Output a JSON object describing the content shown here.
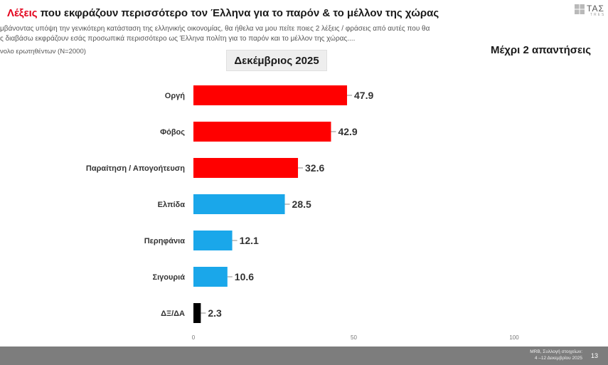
{
  "header": {
    "title_accent": "Λέξεις",
    "title_rest": " που εκφράζουν περισσότερο τον Έλληνα για το παρόν & το μέλλον της χώρας",
    "question_line1": "μβάνοντας υπόψη την γενικότερη κατάσταση της ελληνικής οικονομίας, θα ήθελα να μου πείτε ποιες 2  λέξεις / φράσεις από αυτές που θα",
    "question_line2": "ς διαβάσω εκφράζουν εσάς προσωπικά περισσότερο ως Έλληνα πολίτη για το παρόν και το μέλλον της χώρας....",
    "base": "νολο ερωτηθέντων (N=2000)",
    "note": "Μέχρι 2 απαντήσεις",
    "logo_text": "ΤΑΣ",
    "logo_sub": "TRES"
  },
  "chart_data": {
    "type": "bar",
    "orientation": "horizontal",
    "title": "Δεκέμβριος 2025",
    "categories": [
      "Οργή",
      "Φόβος",
      "Παραίτηση / Απογοήτευση",
      "Ελπίδα",
      "Περηφάνια",
      "Σιγουριά",
      "ΔΞ/ΔΑ"
    ],
    "values": [
      47.9,
      42.9,
      32.6,
      28.5,
      12.1,
      10.6,
      2.3
    ],
    "colors": [
      "#ff0000",
      "#ff0000",
      "#ff0000",
      "#1aa7ea",
      "#1aa7ea",
      "#1aa7ea",
      "#000000"
    ],
    "xlim": [
      0,
      100
    ],
    "xticks": [
      "0",
      "50",
      "100"
    ],
    "grid": false,
    "legend": "none"
  },
  "footer": {
    "source_line1": "MRB, Συλλογή στοιχείων:",
    "source_line2": "4 –12 Δεκεμβρίου 2025",
    "page": "13"
  }
}
